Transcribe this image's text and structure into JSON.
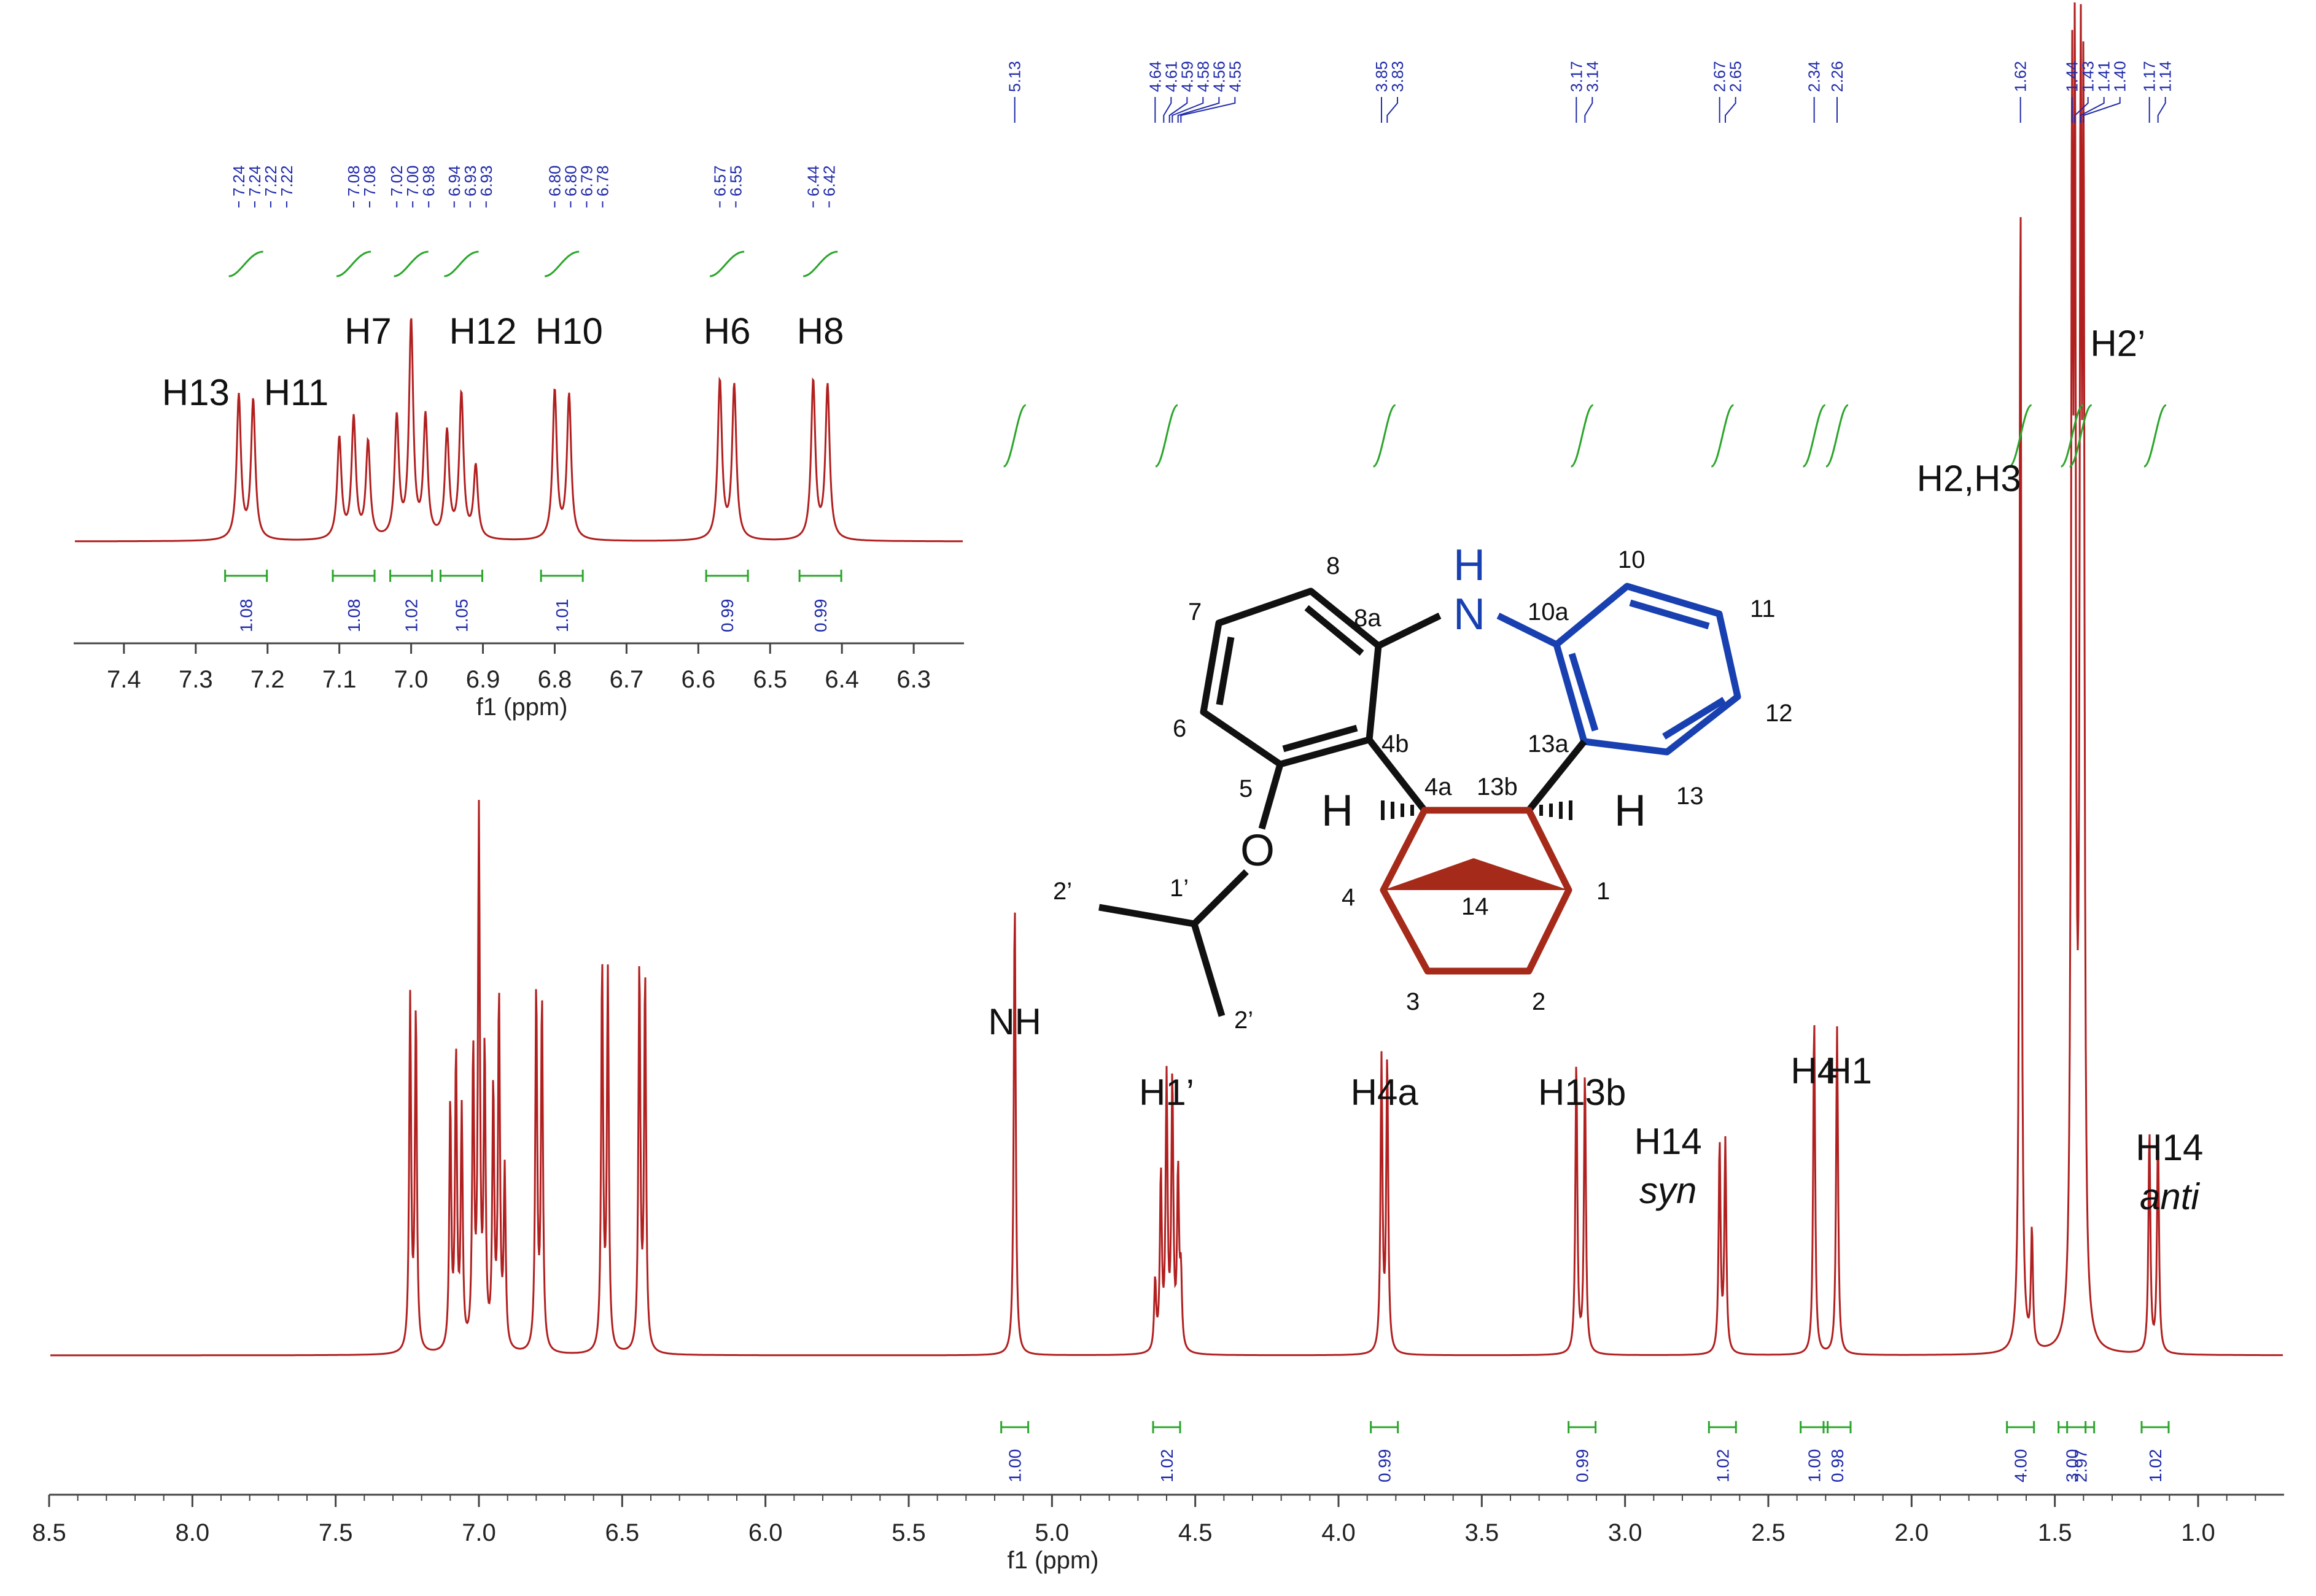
{
  "chart_data": [
    {
      "type": "line",
      "title": "",
      "xlabel": "f1 (ppm)",
      "ylabel": "",
      "xlim": [
        8.5,
        0.7
      ],
      "x_ticks": [
        "8.5",
        "8.0",
        "7.5",
        "7.0",
        "6.5",
        "6.0",
        "5.5",
        "5.0",
        "4.5",
        "4.0",
        "3.5",
        "3.0",
        "2.5",
        "2.0",
        "1.5",
        "1.0"
      ],
      "grid": false,
      "series_color": "#b11f1f",
      "peaks": [
        {
          "ppm": 7.24,
          "h": 0.3
        },
        {
          "ppm": 7.22,
          "h": 0.29
        },
        {
          "ppm": 7.1,
          "h": 0.21
        },
        {
          "ppm": 7.08,
          "h": 0.25
        },
        {
          "ppm": 7.06,
          "h": 0.2
        },
        {
          "ppm": 7.02,
          "h": 0.25
        },
        {
          "ppm": 7.0,
          "h": 0.45
        },
        {
          "ppm": 6.98,
          "h": 0.25
        },
        {
          "ppm": 6.95,
          "h": 0.22
        },
        {
          "ppm": 6.93,
          "h": 0.3
        },
        {
          "ppm": 6.91,
          "h": 0.15
        },
        {
          "ppm": 6.8,
          "h": 0.31
        },
        {
          "ppm": 6.78,
          "h": 0.3
        },
        {
          "ppm": 6.57,
          "h": 0.33
        },
        {
          "ppm": 6.55,
          "h": 0.32
        },
        {
          "ppm": 6.44,
          "h": 0.33
        },
        {
          "ppm": 6.42,
          "h": 0.32
        },
        {
          "ppm": 5.13,
          "h": 0.39
        },
        {
          "ppm": 4.64,
          "h": 0.06
        },
        {
          "ppm": 4.62,
          "h": 0.15
        },
        {
          "ppm": 4.6,
          "h": 0.23
        },
        {
          "ppm": 4.58,
          "h": 0.23
        },
        {
          "ppm": 4.56,
          "h": 0.15
        },
        {
          "ppm": 4.55,
          "h": 0.06
        },
        {
          "ppm": 3.85,
          "h": 0.25
        },
        {
          "ppm": 3.83,
          "h": 0.25
        },
        {
          "ppm": 3.17,
          "h": 0.25
        },
        {
          "ppm": 3.14,
          "h": 0.24
        },
        {
          "ppm": 2.67,
          "h": 0.18
        },
        {
          "ppm": 2.65,
          "h": 0.18
        },
        {
          "ppm": 2.34,
          "h": 0.29
        },
        {
          "ppm": 2.26,
          "h": 0.28
        },
        {
          "ppm": 1.62,
          "h": 1.0
        },
        {
          "ppm": 1.58,
          "h": 0.1
        },
        {
          "ppm": 1.44,
          "h": 0.98
        },
        {
          "ppm": 1.43,
          "h": 0.98
        },
        {
          "ppm": 1.41,
          "h": 0.98
        },
        {
          "ppm": 1.4,
          "h": 0.97
        },
        {
          "ppm": 1.17,
          "h": 0.19
        },
        {
          "ppm": 1.14,
          "h": 0.19
        }
      ],
      "shift_labels_left": [
        "7.24",
        "7.24",
        "7.22",
        "7.22",
        "7.08",
        "7.08",
        "7.02",
        "7.00",
        "6.98",
        "6.94",
        "6.93",
        "6.93",
        "6.80",
        "6.80",
        "6.79",
        "6.78",
        "6.57",
        "6.55",
        "6.44",
        "6.42"
      ],
      "shift_labels_right": [
        "5.13",
        "4.64",
        "4.61",
        "4.59",
        "4.58",
        "4.56",
        "4.55",
        "3.85",
        "3.83",
        "3.17",
        "3.14",
        "2.67",
        "2.65",
        "2.34",
        "2.26",
        "1.62",
        "1.44",
        "1.43",
        "1.41",
        "1.40",
        "1.17",
        "1.14"
      ],
      "integrals": [
        {
          "ppm": 5.13,
          "value": "1.00"
        },
        {
          "ppm": 4.6,
          "value": "1.02"
        },
        {
          "ppm": 3.84,
          "value": "0.99"
        },
        {
          "ppm": 3.15,
          "value": "0.99"
        },
        {
          "ppm": 2.66,
          "value": "1.02"
        },
        {
          "ppm": 2.34,
          "value": "1.00"
        },
        {
          "ppm": 2.26,
          "value": "0.98"
        },
        {
          "ppm": 1.62,
          "value": "4.00"
        },
        {
          "ppm": 1.44,
          "value": "3.00"
        },
        {
          "ppm": 1.41,
          "value": "2.97"
        },
        {
          "ppm": 1.15,
          "value": "1.02"
        }
      ],
      "peak_labels": [
        {
          "ppm": 5.13,
          "text": "NH"
        },
        {
          "ppm": 4.6,
          "text": "H1’"
        },
        {
          "ppm": 3.84,
          "text": "H4a"
        },
        {
          "ppm": 3.15,
          "text": "H13b"
        },
        {
          "ppm": 2.85,
          "text": "H14",
          "text2": "syn"
        },
        {
          "ppm": 2.34,
          "text": "H4"
        },
        {
          "ppm": 2.22,
          "text": "H1"
        },
        {
          "ppm": 1.8,
          "text": "H2,H3"
        },
        {
          "ppm": 1.28,
          "text": "H2’"
        },
        {
          "ppm": 1.1,
          "text": "H14",
          "text2": "anti"
        }
      ]
    },
    {
      "type": "line",
      "title": "",
      "xlabel": "f1 (ppm)",
      "ylabel": "",
      "xlim": [
        7.47,
        6.23
      ],
      "x_ticks": [
        "7.4",
        "7.3",
        "7.2",
        "7.1",
        "7.0",
        "6.9",
        "6.8",
        "6.7",
        "6.6",
        "6.5",
        "6.4",
        "6.3"
      ],
      "grid": false,
      "series_color": "#b11f1f",
      "integrals": [
        {
          "ppm": 7.23,
          "value": "1.08"
        },
        {
          "ppm": 7.08,
          "value": "1.08"
        },
        {
          "ppm": 7.0,
          "value": "1.02"
        },
        {
          "ppm": 6.93,
          "value": "1.05"
        },
        {
          "ppm": 6.79,
          "value": "1.01"
        },
        {
          "ppm": 6.56,
          "value": "0.99"
        },
        {
          "ppm": 6.43,
          "value": "0.99"
        }
      ],
      "peak_labels": [
        {
          "ppm": 7.3,
          "text": "H13"
        },
        {
          "ppm": 7.16,
          "text": "H11"
        },
        {
          "ppm": 7.06,
          "text": "H7"
        },
        {
          "ppm": 6.9,
          "text": "H12"
        },
        {
          "ppm": 6.78,
          "text": "H10"
        },
        {
          "ppm": 6.56,
          "text": "H6"
        },
        {
          "ppm": 6.43,
          "text": "H8"
        }
      ]
    }
  ],
  "molecule": {
    "atoms": {
      "N": "N",
      "H_N": "H",
      "O": "O",
      "H_left": "H",
      "H_right": "H",
      "n1": "1",
      "n2": "2",
      "n3": "3",
      "n4": "4",
      "n4a": "4a",
      "n4b": "4b",
      "n5": "5",
      "n6": "6",
      "n7": "7",
      "n8": "8",
      "n8a": "8a",
      "n10": "10",
      "n10a": "10a",
      "n11": "11",
      "n12": "12",
      "n13": "13",
      "n13a": "13a",
      "n13b": "13b",
      "n14": "14",
      "n1p": "1’",
      "n2p_a": "2’",
      "n2p_b": "2’"
    },
    "colors": {
      "black": "#111111",
      "blue": "#1840b0",
      "red": "#a52a1a"
    }
  }
}
